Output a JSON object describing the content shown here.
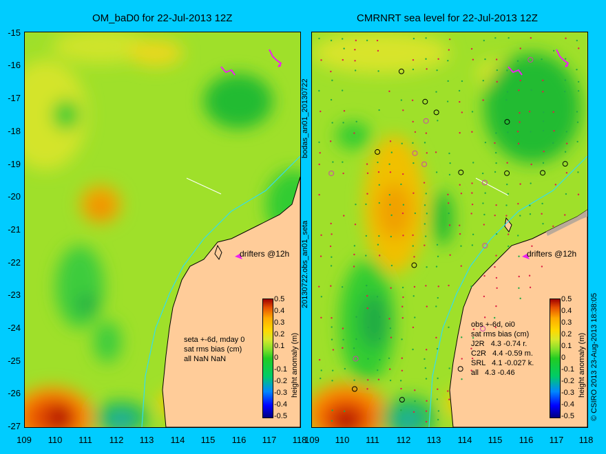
{
  "left_panel": {
    "title": "OM_baD0 for 22-Jul-2013 12Z",
    "notes": [
      "seta +-6d, mday 0",
      "sat rms bias (cm)",
      "all NaN NaN"
    ],
    "drifters_label": "drifters @12h",
    "colorbar_label": "height anomaly (m)"
  },
  "right_panel": {
    "title": "CMRNRT sea level  for 22-Jul-2013 12Z",
    "notes": [
      "obs +-6d, oi0",
      "sat rms bias (cm)",
      "J2R   4.3 -0.74 r.",
      "C2R   4.4 -0.59 m.",
      "SRL   4.1 -0.027 k.",
      "all   4.3 -0.46"
    ],
    "drifters_label": "drifters @12h",
    "colorbar_label": "height anomaly (m)"
  },
  "middle_vertical_label": "bodas_an01_20130722",
  "middle_vertical_label2": "20130722.obs_an01_seta",
  "copyright": "© CSIRO 2013   23-Aug-2013 18:38:05",
  "y_ticks": [
    "-15",
    "-16",
    "-17",
    "-18",
    "-19",
    "-20",
    "-21",
    "-22",
    "-23",
    "-24",
    "-25",
    "-26",
    "-27"
  ],
  "x_ticks_left": [
    "109",
    "110",
    "111",
    "112",
    "113",
    "114",
    "115",
    "116",
    "117",
    "118"
  ],
  "x_ticks_right": [
    "109",
    "110",
    "111",
    "112",
    "113",
    "114",
    "115",
    "116",
    "117",
    "118"
  ],
  "colorbar_ticks": [
    "0.5",
    "0.4",
    "0.3",
    "0.2",
    "0.1",
    "0",
    "-0.1",
    "-0.2",
    "-0.3",
    "-0.4",
    "-0.5"
  ],
  "colors": {
    "background": "#00ccff",
    "land": "#ffcc99",
    "field": "#9fe02a",
    "drifter": "#ee22ee"
  }
}
